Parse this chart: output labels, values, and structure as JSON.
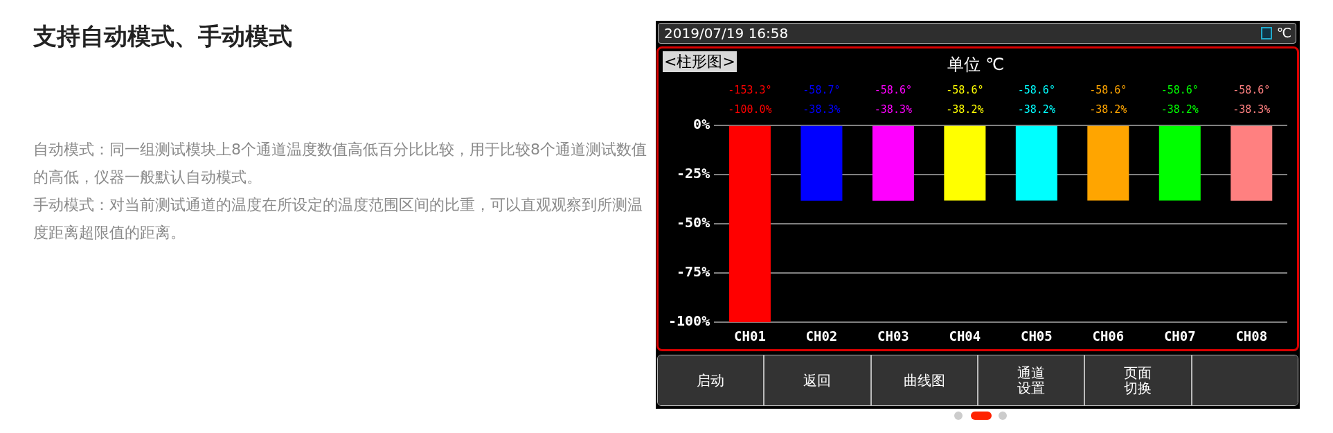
{
  "chart_data": {
    "type": "bar",
    "title": "支持自动模式、手动模式",
    "subtitle": "单位 ℃",
    "categories": [
      "CH01",
      "CH02",
      "CH03",
      "CH04",
      "CH05",
      "CH06",
      "CH07",
      "CH08"
    ],
    "values": [
      -100.0,
      -38.3,
      -38.3,
      -38.2,
      -38.2,
      -38.2,
      -38.2,
      -38.3
    ],
    "colors": [
      "#ff0000",
      "#0000ff",
      "#ff00ff",
      "#ffff00",
      "#00ffff",
      "#ffa500",
      "#00ff00",
      "#ff8080"
    ],
    "value_labels": [
      "-100.0%",
      "-38.3%",
      "-38.3%",
      "-38.2%",
      "-38.2%",
      "-38.2%",
      "-38.2%",
      "-38.3%"
    ],
    "ylim": [
      -100,
      0
    ],
    "yticks": [
      {
        "value": 0,
        "label": "0%"
      },
      {
        "value": -25,
        "label": "-25%"
      },
      {
        "value": -50,
        "label": "-50%"
      },
      {
        "value": -75,
        "label": "-75%"
      },
      {
        "value": -100,
        "label": "-100%"
      }
    ],
    "grid": "y",
    "annotations": [
      "自动模式：同一组测试模块上8个通道温度数值高低百分比比较，用于比较8个通道测试数值的高低，仪器一般默认自动模式。",
      "手动模式：对当前测试通道的温度在所设定的温度范围区间的比重，可以直观观察到所测温度距离超限值的距离。",
      "2019/07/19 16:58",
      "℃",
      "<柱形图>",
      "启动",
      "返回",
      "曲线图",
      "通道设置",
      "页面切换",
      "-153.3°",
      "-58.7°",
      "-58.6°",
      "-58.6°",
      "-58.6°",
      "-58.6°",
      "-58.6°",
      "-58.6°"
    ]
  }
}
